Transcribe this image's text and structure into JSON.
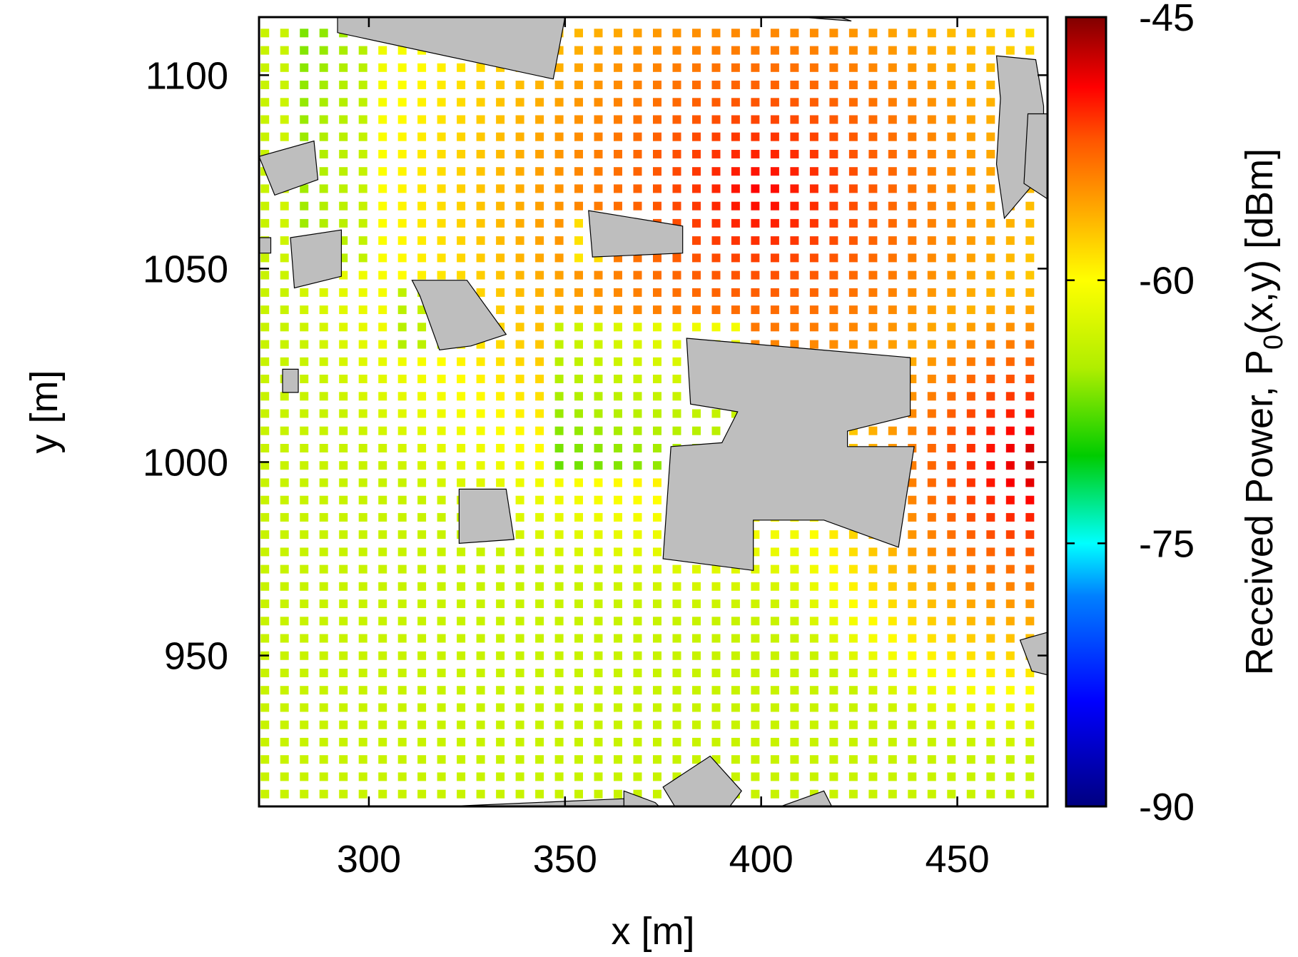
{
  "chart_data": {
    "type": "heatmap",
    "title": "",
    "xlabel": "x [m]",
    "ylabel": "y [m]",
    "colorbar_label": {
      "main": "Received Power, P",
      "subscript": "0",
      "suffix": "(x,y) [dBm]"
    },
    "xlim": [
      272,
      473
    ],
    "ylim": [
      911,
      1115
    ],
    "x_ticks": [
      {
        "value": 300,
        "label": "300"
      },
      {
        "value": 350,
        "label": "350"
      },
      {
        "value": 400,
        "label": "400"
      },
      {
        "value": 450,
        "label": "450"
      }
    ],
    "y_ticks": [
      {
        "value": 950,
        "label": "950"
      },
      {
        "value": 1000,
        "label": "1000"
      },
      {
        "value": 1050,
        "label": "1050"
      },
      {
        "value": 1100,
        "label": "1100"
      }
    ],
    "colorbar": {
      "range": [
        -90,
        -45
      ],
      "ticks": [
        {
          "value": -45,
          "label": "-45"
        },
        {
          "value": -60,
          "label": "-60"
        },
        {
          "value": -75,
          "label": "-75"
        },
        {
          "value": -90,
          "label": "-90"
        }
      ],
      "colormap": [
        [
          -90,
          "#000080"
        ],
        [
          -84,
          "#0000ff"
        ],
        [
          -78,
          "#0080ff"
        ],
        [
          -75,
          "#00ffff"
        ],
        [
          -70,
          "#00cc00"
        ],
        [
          -65,
          "#b0ee00"
        ],
        [
          -60,
          "#ffff00"
        ],
        [
          -56,
          "#ffaa00"
        ],
        [
          -52,
          "#ff5500"
        ],
        [
          -49,
          "#ff0000"
        ],
        [
          -45,
          "#800000"
        ]
      ]
    },
    "grid": {
      "x_start": 273.5,
      "x_step": 5.0,
      "x_count": 40,
      "y_start": 914.2,
      "y_step": 4.47,
      "y_count": 45,
      "value_model": {
        "source": [
          400,
          1070
        ],
        "peak": -49,
        "slope": 0.115,
        "floor": -63.5,
        "extra_sources": [
          {
            "source": [
              470,
              1000
            ],
            "peak": -47,
            "slope": 0.22
          }
        ],
        "shadows": [
          {
            "x": [
              348,
              395
            ],
            "y": [
              995,
              1035
            ],
            "drop": 7
          },
          {
            "x": [
              305,
              320
            ],
            "y": [
              1030,
              1045
            ],
            "drop": 4
          },
          {
            "x": [
              283,
              300
            ],
            "y": [
              1050,
              1115
            ],
            "drop": 3
          },
          {
            "x": [
              350,
              362
            ],
            "y": [
              1050,
              1065
            ],
            "drop": 4
          }
        ]
      }
    },
    "buildings": [
      [
        [
          272,
          1079
        ],
        [
          286,
          1083
        ],
        [
          287,
          1073
        ],
        [
          276,
          1069
        ]
      ],
      [
        [
          292,
          1115
        ],
        [
          350,
          1115
        ],
        [
          347,
          1099
        ],
        [
          292,
          1111
        ]
      ],
      [
        [
          272,
          1058
        ],
        [
          275,
          1058
        ],
        [
          275,
          1054
        ],
        [
          272,
          1054
        ]
      ],
      [
        [
          280,
          1058
        ],
        [
          293,
          1060
        ],
        [
          293,
          1048
        ],
        [
          281,
          1045
        ]
      ],
      [
        [
          311,
          1047
        ],
        [
          325,
          1047
        ],
        [
          335,
          1033
        ],
        [
          326,
          1030
        ],
        [
          318,
          1029
        ],
        [
          313,
          1043
        ]
      ],
      [
        [
          278,
          1024
        ],
        [
          282,
          1024
        ],
        [
          282,
          1018
        ],
        [
          278,
          1018
        ]
      ],
      [
        [
          356,
          1065
        ],
        [
          380,
          1061
        ],
        [
          380,
          1054
        ],
        [
          357,
          1053
        ]
      ],
      [
        [
          381,
          1032
        ],
        [
          438,
          1027
        ],
        [
          438,
          1012
        ],
        [
          422,
          1008
        ],
        [
          422,
          1004
        ],
        [
          439,
          1004
        ],
        [
          435,
          978
        ],
        [
          416,
          985
        ],
        [
          398,
          985
        ],
        [
          398,
          972
        ],
        [
          375,
          975
        ],
        [
          377,
          1004
        ],
        [
          390,
          1005
        ],
        [
          394,
          1013
        ],
        [
          382,
          1015
        ]
      ],
      [
        [
          323,
          993
        ],
        [
          335,
          993
        ],
        [
          337,
          980
        ],
        [
          323,
          979
        ]
      ],
      [
        [
          460,
          1105
        ],
        [
          470,
          1104
        ],
        [
          472,
          1092
        ],
        [
          472,
          1075
        ],
        [
          462,
          1063
        ],
        [
          460,
          1077
        ],
        [
          461,
          1094
        ]
      ],
      [
        [
          468,
          1090
        ],
        [
          473,
          1090
        ],
        [
          473,
          1068
        ],
        [
          467,
          1072
        ]
      ],
      [
        [
          466,
          954
        ],
        [
          473,
          956
        ],
        [
          473,
          945
        ],
        [
          469,
          946
        ]
      ],
      [
        [
          365,
          915
        ],
        [
          373,
          912
        ],
        [
          374,
          911
        ],
        [
          365,
          911
        ]
      ],
      [
        [
          375,
          916
        ],
        [
          387,
          924
        ],
        [
          395,
          915
        ],
        [
          392,
          911
        ],
        [
          378,
          911
        ]
      ],
      [
        [
          405,
          911
        ],
        [
          416,
          915
        ],
        [
          418,
          911
        ]
      ],
      [
        [
          320,
          911
        ],
        [
          365,
          913
        ],
        [
          365,
          911
        ]
      ],
      [
        [
          410,
          1115
        ],
        [
          423,
          1114
        ],
        [
          420,
          1115
        ]
      ]
    ]
  }
}
